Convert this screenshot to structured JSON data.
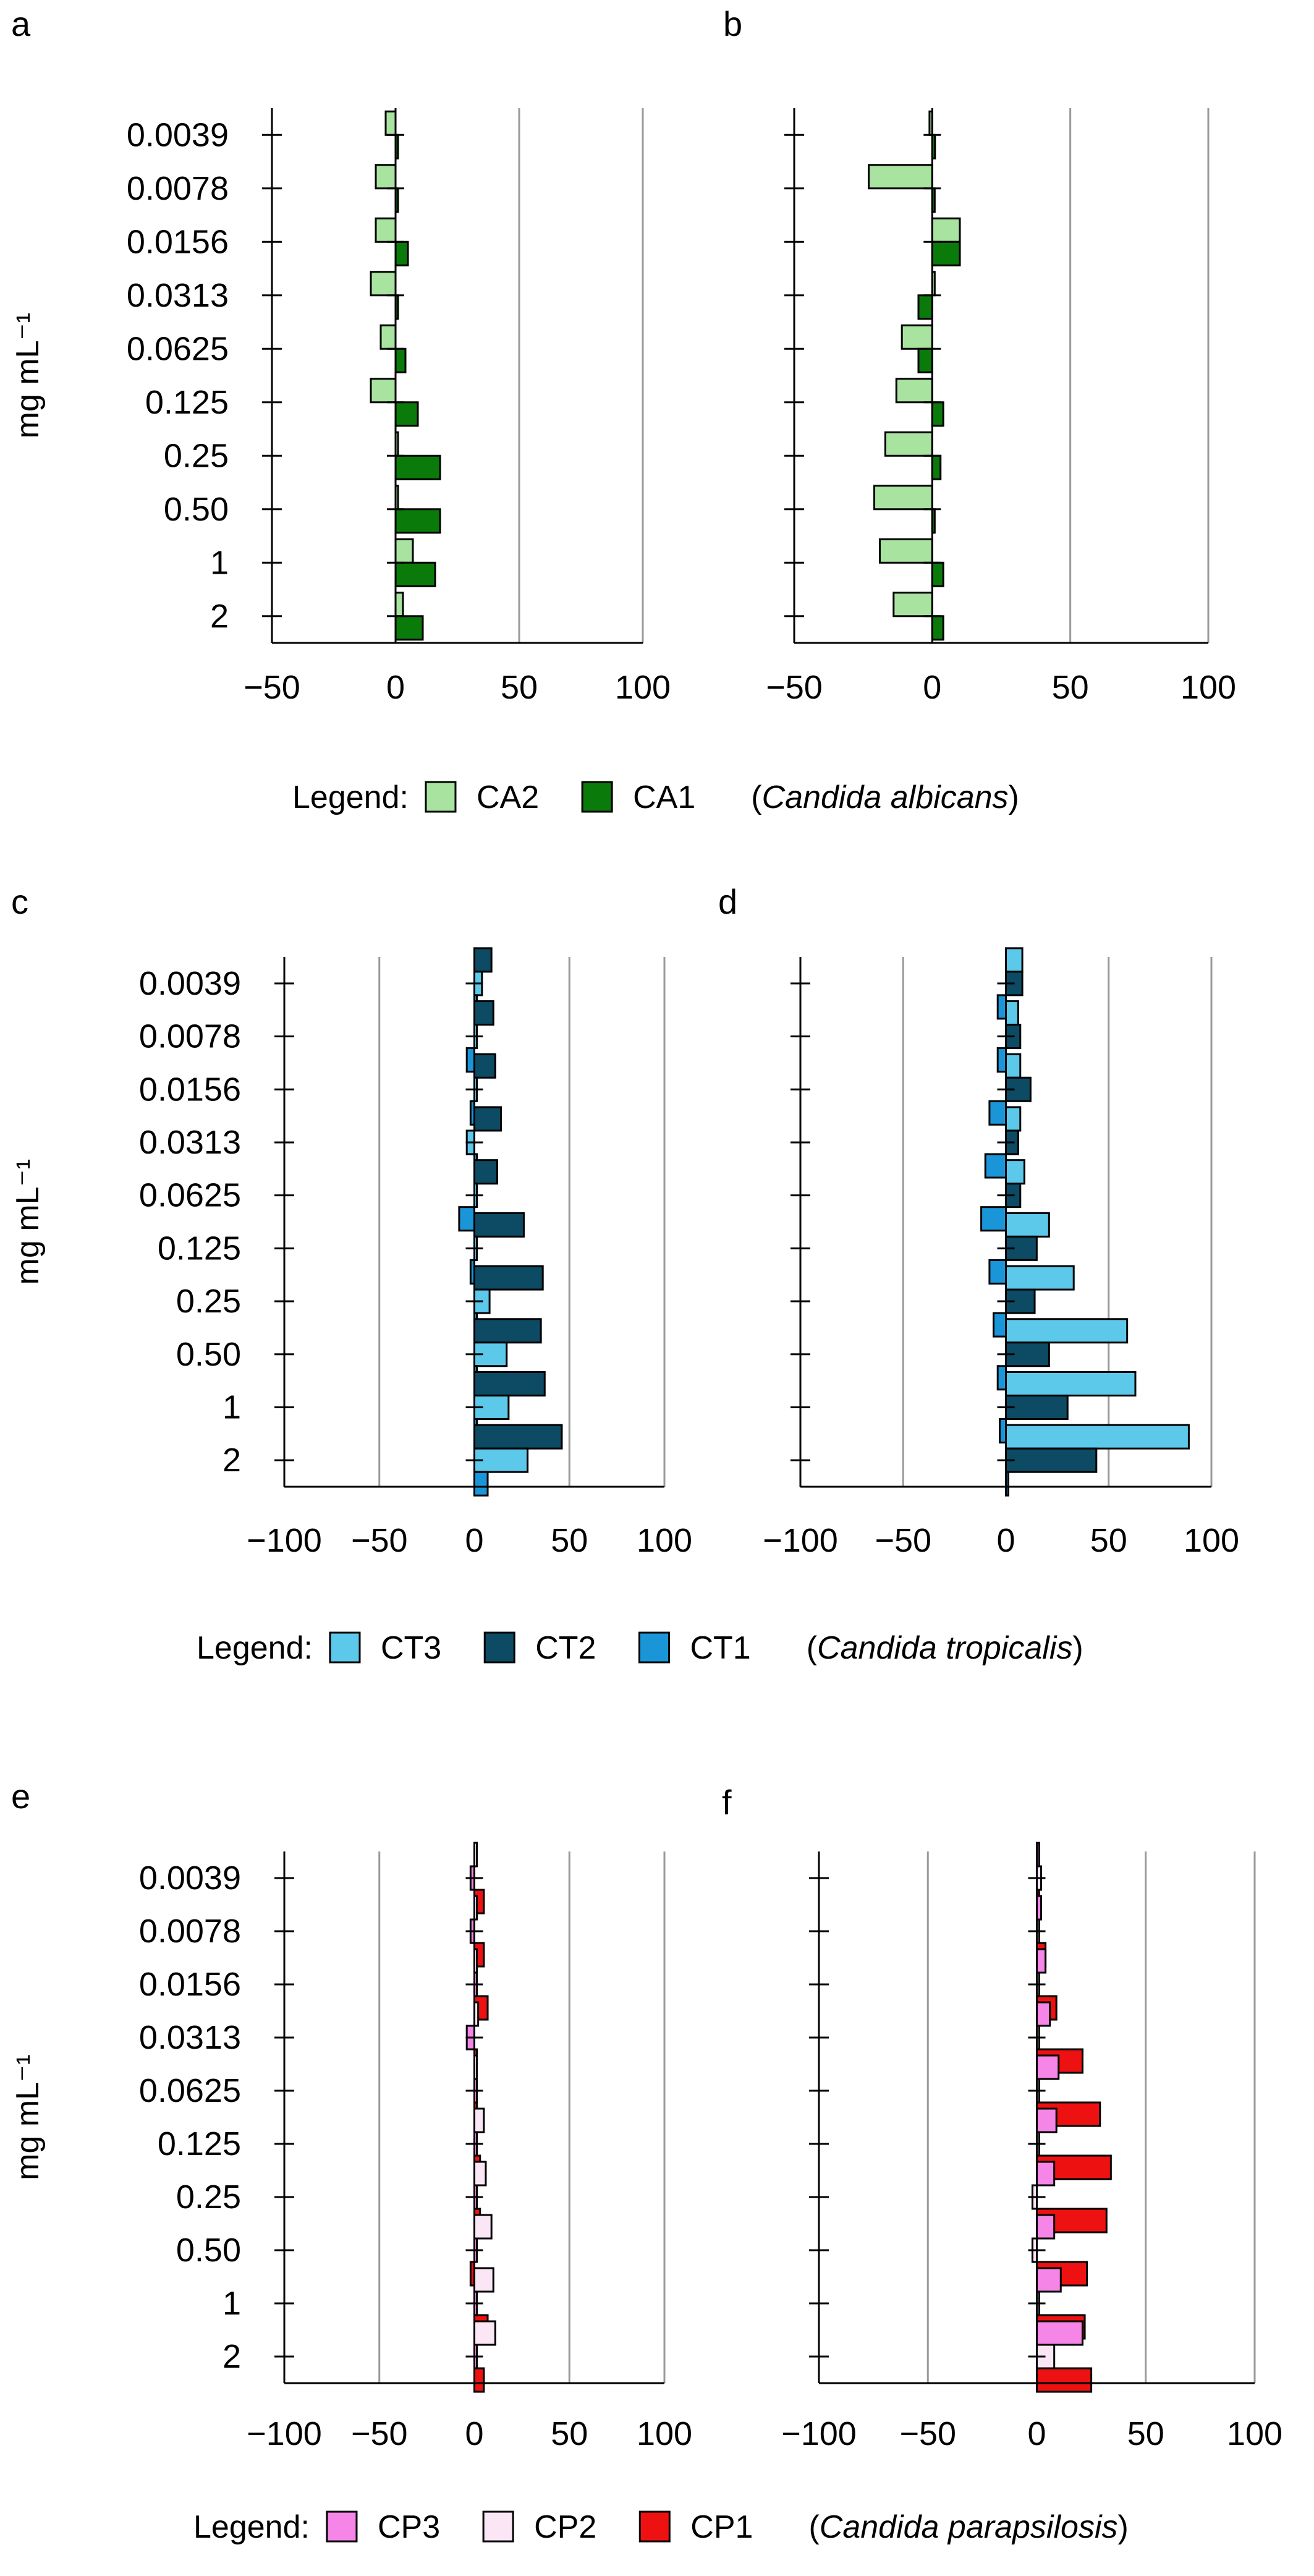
{
  "figure_title": "",
  "chart_data": [
    {
      "type": "bar",
      "panel_label": "a",
      "orientation": "horizontal",
      "categories": [
        "0.0039",
        "0.0078",
        "0.0156",
        "0.0313",
        "0.0625",
        "0.125",
        "0.25",
        "0.50",
        "1",
        "2"
      ],
      "ylabel": "mg mL⁻¹",
      "xlabel": "",
      "xlim": [
        -50,
        100
      ],
      "xticks": [
        -50,
        0,
        50,
        100
      ],
      "xtick_labels": [
        "−50",
        "0",
        "50",
        "100"
      ],
      "grid": "vertical",
      "series": [
        {
          "name": "CA2",
          "color": "#a8e4a0",
          "values": [
            -4,
            -8,
            -8,
            -10,
            -6,
            -10,
            1,
            1,
            7,
            3
          ]
        },
        {
          "name": "CA1",
          "color": "#0a7a0a",
          "values": [
            0,
            0,
            5,
            0,
            4,
            9,
            18,
            18,
            16,
            11
          ]
        }
      ]
    },
    {
      "type": "bar",
      "panel_label": "b",
      "orientation": "horizontal",
      "categories": [
        "0.0039",
        "0.0078",
        "0.0156",
        "0.0313",
        "0.0625",
        "0.125",
        "0.25",
        "0.50",
        "1",
        "2"
      ],
      "ylabel": "",
      "xlabel": "",
      "xlim": [
        -50,
        100
      ],
      "xticks": [
        -50,
        0,
        50,
        100
      ],
      "xtick_labels": [
        "−50",
        "0",
        "50",
        "100"
      ],
      "grid": "vertical",
      "series": [
        {
          "name": "CA2",
          "color": "#a8e4a0",
          "values": [
            -1,
            -23,
            10,
            0,
            -11,
            -13,
            -17,
            -21,
            -19,
            -14
          ]
        },
        {
          "name": "CA1",
          "color": "#0a7a0a",
          "values": [
            1,
            0,
            10,
            -5,
            -5,
            4,
            3,
            0,
            4,
            4
          ]
        }
      ]
    },
    {
      "type": "bar",
      "panel_label": "c",
      "orientation": "horizontal",
      "categories": [
        "0.0039",
        "0.0078",
        "0.0156",
        "0.0313",
        "0.0625",
        "0.125",
        "0.25",
        "0.50",
        "1",
        "2"
      ],
      "ylabel": "mg mL⁻¹",
      "xlabel": "",
      "xlim": [
        -100,
        100
      ],
      "xticks": [
        -100,
        -50,
        0,
        50,
        100
      ],
      "xtick_labels": [
        "−100",
        "−50",
        "0",
        "50",
        "100"
      ],
      "grid": "vertical",
      "series": [
        {
          "name": "CT2",
          "color": "#0d4a63",
          "values": [
            9,
            10,
            11,
            14,
            12,
            26,
            36,
            35,
            37,
            46
          ]
        },
        {
          "name": "CT3",
          "color": "#5cc8ea",
          "values": [
            4,
            0,
            0,
            -4,
            0,
            0,
            8,
            17,
            18,
            28
          ]
        },
        {
          "name": "CT1",
          "color": "#1a96d8",
          "values": [
            0,
            -4,
            -2,
            0,
            -8,
            -2,
            0,
            0,
            0,
            7
          ]
        }
      ]
    },
    {
      "type": "bar",
      "panel_label": "d",
      "orientation": "horizontal",
      "categories": [
        "0.0039",
        "0.0078",
        "0.0156",
        "0.0313",
        "0.0625",
        "0.125",
        "0.25",
        "0.50",
        "1",
        "2"
      ],
      "ylabel": "",
      "xlabel": "",
      "xlim": [
        -100,
        100
      ],
      "xticks": [
        -100,
        -50,
        0,
        50,
        100
      ],
      "xtick_labels": [
        "−100",
        "−50",
        "0",
        "50",
        "100"
      ],
      "grid": "vertical",
      "series": [
        {
          "name": "CT3",
          "color": "#5cc8ea",
          "values": [
            8,
            6,
            7,
            7,
            9,
            21,
            33,
            59,
            63,
            89
          ]
        },
        {
          "name": "CT2",
          "color": "#0d4a63",
          "values": [
            8,
            7,
            12,
            6,
            7,
            15,
            14,
            21,
            30,
            44
          ]
        },
        {
          "name": "CT1",
          "color": "#1a96d8",
          "values": [
            -4,
            -4,
            -8,
            -10,
            -12,
            -8,
            -6,
            -4,
            -3,
            0
          ]
        }
      ]
    },
    {
      "type": "bar",
      "panel_label": "e",
      "orientation": "horizontal",
      "categories": [
        "0.0039",
        "0.0078",
        "0.0156",
        "0.0313",
        "0.0625",
        "0.125",
        "0.25",
        "0.50",
        "1",
        "2"
      ],
      "ylabel": "mg mL⁻¹",
      "xlabel": "",
      "xlim": [
        -100,
        100
      ],
      "xticks": [
        -100,
        -50,
        0,
        50,
        100
      ],
      "xtick_labels": [
        "−100",
        "−50",
        "0",
        "50",
        "100"
      ],
      "grid": "vertical",
      "series": [
        {
          "name": "CP2",
          "color": "#fbe6f5",
          "values": [
            0,
            0,
            0,
            2,
            0,
            5,
            6,
            9,
            10,
            11
          ]
        },
        {
          "name": "CP3",
          "color": "#f585e6",
          "values": [
            -2,
            -2,
            0,
            -4,
            0,
            0,
            0,
            0,
            0,
            0
          ]
        },
        {
          "name": "CP1",
          "color": "#ee1111",
          "values": [
            5,
            5,
            7,
            0,
            0,
            3,
            3,
            -2,
            7,
            5
          ]
        }
      ]
    },
    {
      "type": "bar",
      "panel_label": "f",
      "orientation": "horizontal",
      "categories": [
        "0.0039",
        "0.0078",
        "0.0156",
        "0.0313",
        "0.0625",
        "0.125",
        "0.25",
        "0.50",
        "1",
        "2"
      ],
      "ylabel": "",
      "xlabel": "",
      "xlim": [
        -100,
        100
      ],
      "xticks": [
        -100,
        -50,
        0,
        50,
        100
      ],
      "xtick_labels": [
        "−100",
        "−50",
        "0",
        "50",
        "100"
      ],
      "grid": "vertical",
      "series": [
        {
          "name": "CP3",
          "color": "#f585e6",
          "values": [
            1,
            2,
            4,
            6,
            10,
            9,
            8,
            8,
            11,
            21
          ]
        },
        {
          "name": "CP2",
          "color": "#fbe6f5",
          "values": [
            2,
            0,
            0,
            0,
            0,
            0,
            -2,
            -2,
            0,
            8
          ]
        },
        {
          "name": "CP1",
          "color": "#ee1111",
          "values": [
            0,
            4,
            9,
            21,
            29,
            34,
            32,
            23,
            22,
            25
          ]
        }
      ]
    }
  ],
  "legends": [
    {
      "prefix": "Legend:",
      "species": "Candida albicans",
      "items": [
        {
          "name": "CA2",
          "color": "#a8e4a0"
        },
        {
          "name": "CA1",
          "color": "#0a7a0a"
        }
      ]
    },
    {
      "prefix": "Legend:",
      "species": "Candida tropicalis",
      "items": [
        {
          "name": "CT3",
          "color": "#5cc8ea"
        },
        {
          "name": "CT2",
          "color": "#0d4a63"
        },
        {
          "name": "CT1",
          "color": "#1a96d8"
        }
      ]
    },
    {
      "prefix": "Legend:",
      "species": "Candida parapsilosis",
      "items": [
        {
          "name": "CP3",
          "color": "#f585e6"
        },
        {
          "name": "CP2",
          "color": "#fbe6f5"
        },
        {
          "name": "CP1",
          "color": "#ee1111"
        }
      ]
    }
  ]
}
